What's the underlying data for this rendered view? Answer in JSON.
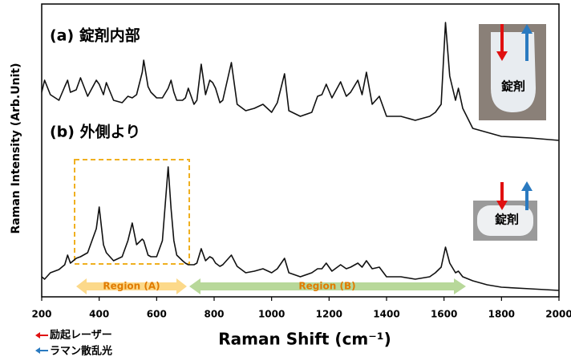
{
  "chart_data": {
    "type": "line",
    "x": [
      200,
      210,
      230,
      260,
      280,
      290,
      300,
      320,
      335,
      360,
      390,
      400,
      415,
      425,
      450,
      480,
      500,
      515,
      530,
      550,
      555,
      570,
      580,
      600,
      620,
      640,
      650,
      660,
      670,
      690,
      700,
      710,
      730,
      740,
      755,
      770,
      785,
      795,
      805,
      820,
      830,
      860,
      880,
      910,
      940,
      970,
      1000,
      1020,
      1045,
      1060,
      1100,
      1140,
      1160,
      1175,
      1190,
      1210,
      1240,
      1260,
      1275,
      1300,
      1315,
      1330,
      1350,
      1375,
      1400,
      1450,
      1500,
      1550,
      1570,
      1590,
      1605,
      1620,
      1640,
      1650,
      1665,
      1700,
      1750,
      1800,
      1900,
      2000
    ],
    "series": [
      {
        "color": "#111111",
        "values": [
          255,
          270,
          252,
          245,
          262,
          270,
          255,
          258,
          273,
          250,
          270,
          265,
          252,
          267,
          245,
          242,
          250,
          248,
          252,
          280,
          295,
          262,
          255,
          248,
          248,
          260,
          270,
          255,
          245,
          245,
          248,
          260,
          240,
          245,
          290,
          252,
          270,
          267,
          260,
          242,
          245,
          292,
          240,
          232,
          235,
          240,
          230,
          242,
          278,
          232,
          225,
          230,
          250,
          252,
          265,
          248,
          268,
          250,
          255,
          270,
          252,
          280,
          240,
          250,
          225,
          225,
          220,
          225,
          230,
          240,
          342,
          275,
          245,
          260,
          235,
          210,
          205,
          200,
          198,
          195
        ]
      },
      {
        "color": "#111111",
        "values": [
          25,
          22,
          30,
          34,
          40,
          52,
          42,
          48,
          50,
          55,
          85,
          112,
          65,
          55,
          45,
          50,
          70,
          92,
          65,
          72,
          70,
          52,
          50,
          50,
          70,
          162,
          110,
          70,
          52,
          45,
          42,
          40,
          40,
          42,
          60,
          45,
          50,
          48,
          42,
          38,
          40,
          52,
          38,
          30,
          32,
          35,
          30,
          35,
          48,
          30,
          25,
          30,
          35,
          35,
          42,
          32,
          40,
          35,
          37,
          42,
          37,
          45,
          35,
          37,
          25,
          25,
          22,
          25,
          30,
          37,
          62,
          42,
          30,
          32,
          25,
          20,
          15,
          12,
          10,
          8
        ]
      }
    ],
    "xlim": [
      200,
      2000
    ],
    "ylim": [
      0,
      365
    ],
    "xticks": [
      200,
      400,
      600,
      800,
      1000,
      1200,
      1400,
      1600,
      1800,
      2000
    ],
    "xlabel": "Raman Shift (cm⁻¹)",
    "ylabel": "Raman Intensity (Arb.Unit)",
    "annotations": {
      "label_a": "(a) 錠剤内部",
      "label_b": "(b) 外側より",
      "region_a": "Region (A)",
      "region_b": "Region (B)",
      "tablet_1": "錠剤",
      "tablet_2": "錠剤",
      "laser": "励起レーザー",
      "raman": "ラマン散乱光"
    }
  }
}
